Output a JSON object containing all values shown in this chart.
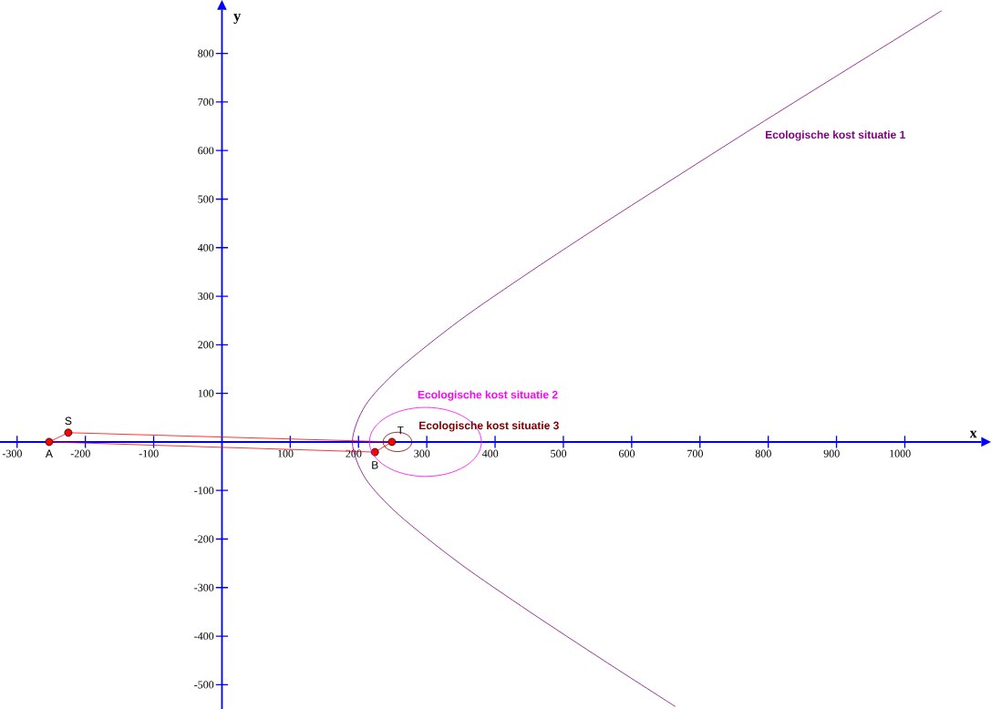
{
  "chart_data": {
    "type": "line",
    "xlabel": "x",
    "ylabel": "y",
    "xlim": [
      -325,
      1112
    ],
    "ylim": [
      -550,
      890
    ],
    "xticks": [
      -300,
      -200,
      -100,
      100,
      200,
      300,
      400,
      500,
      600,
      700,
      800,
      900,
      1000
    ],
    "yticks": [
      -500,
      -400,
      -300,
      -200,
      -100,
      100,
      200,
      300,
      400,
      500,
      600,
      700,
      800
    ],
    "grid": false,
    "series": [
      {
        "name": "Ecologische kost situatie 1",
        "color": "#800080",
        "x": [
          664,
          559,
          451,
          348,
          259,
          210,
          191,
          210,
          259,
          348,
          451,
          559,
          670,
          782,
          896,
          1054
        ],
        "values": [
          -545,
          -450,
          -350,
          -250,
          -150,
          -75,
          0,
          75,
          150,
          250,
          350,
          450,
          550,
          650,
          750,
          888
        ]
      },
      {
        "color": "#ff0000",
        "x": [
          -253,
          -225,
          249
        ],
        "values": [
          0,
          19,
          0
        ]
      },
      {
        "color": "#ff0000",
        "x": [
          -253,
          224,
          249
        ],
        "values": [
          0,
          -21,
          0
        ]
      },
      {
        "type": "scatter",
        "color": "#ff0000",
        "marker": "circle",
        "x": [
          -253,
          -225,
          249,
          224
        ],
        "values": [
          0,
          19,
          0,
          -21
        ]
      }
    ],
    "annotations": [
      {
        "text": "A",
        "x": -253,
        "y": 0
      },
      {
        "text": "S",
        "x": -225,
        "y": 19
      },
      {
        "text": "T",
        "x": 249,
        "y": 0
      },
      {
        "text": "B",
        "x": 224,
        "y": -21
      },
      "Ecologische kost situatie 2",
      "Ecologische kost situatie 3"
    ]
  }
}
